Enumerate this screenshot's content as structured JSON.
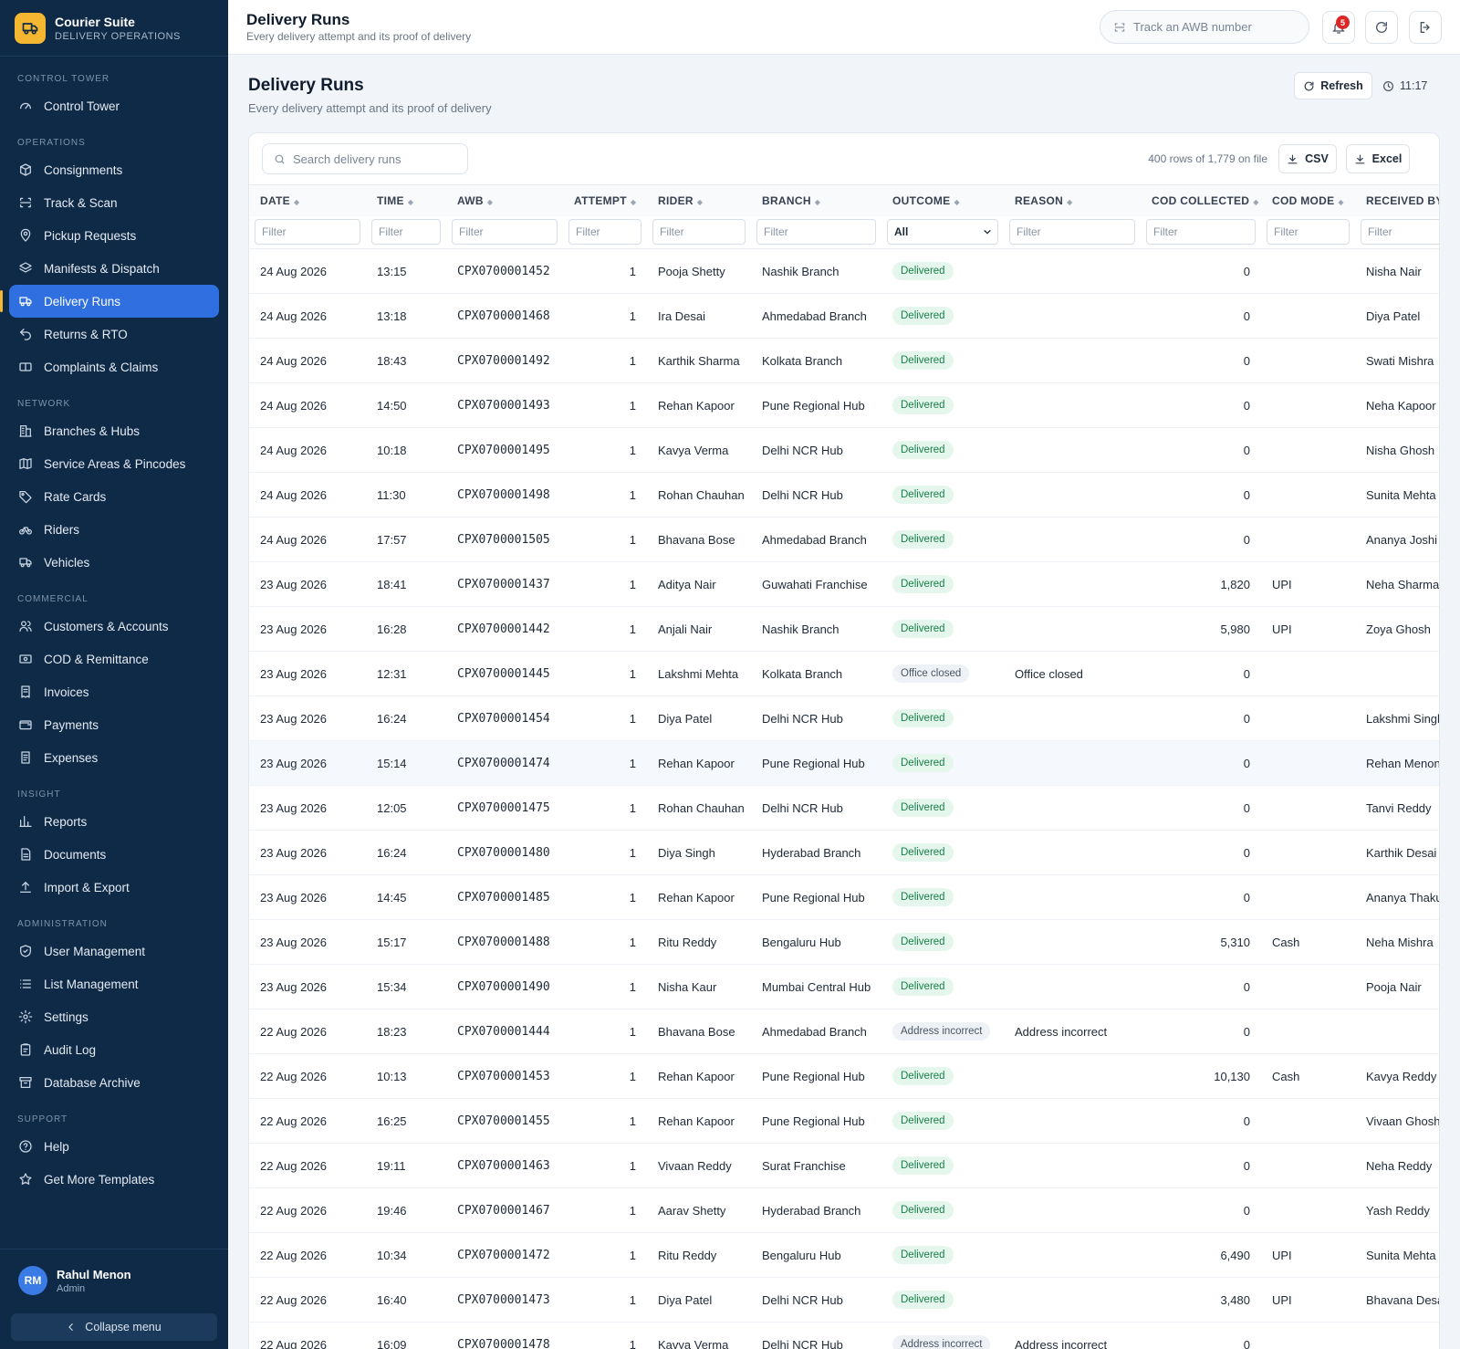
{
  "app": {
    "name": "Courier Suite",
    "subtitle": "DELIVERY OPERATIONS"
  },
  "nav": [
    {
      "section": "CONTROL TOWER",
      "items": [
        {
          "label": "Control Tower",
          "icon": "gauge-icon"
        }
      ]
    },
    {
      "section": "OPERATIONS",
      "items": [
        {
          "label": "Consignments",
          "icon": "box-icon"
        },
        {
          "label": "Track & Scan",
          "icon": "scan-icon"
        },
        {
          "label": "Pickup Requests",
          "icon": "map-pin-icon"
        },
        {
          "label": "Manifests & Dispatch",
          "icon": "layers-icon"
        },
        {
          "label": "Delivery Runs",
          "icon": "truck-icon",
          "active": true
        },
        {
          "label": "Returns & RTO",
          "icon": "undo-icon"
        },
        {
          "label": "Complaints & Claims",
          "icon": "ticket-icon"
        }
      ]
    },
    {
      "section": "NETWORK",
      "items": [
        {
          "label": "Branches & Hubs",
          "icon": "building-icon"
        },
        {
          "label": "Service Areas & Pincodes",
          "icon": "map-icon"
        },
        {
          "label": "Rate Cards",
          "icon": "tag-icon"
        },
        {
          "label": "Riders",
          "icon": "bike-icon"
        },
        {
          "label": "Vehicles",
          "icon": "truck-icon"
        }
      ]
    },
    {
      "section": "COMMERCIAL",
      "items": [
        {
          "label": "Customers & Accounts",
          "icon": "users-icon"
        },
        {
          "label": "COD & Remittance",
          "icon": "cash-icon"
        },
        {
          "label": "Invoices",
          "icon": "invoice-icon"
        },
        {
          "label": "Payments",
          "icon": "wallet-icon"
        },
        {
          "label": "Expenses",
          "icon": "receipt-icon"
        }
      ]
    },
    {
      "section": "INSIGHT",
      "items": [
        {
          "label": "Reports",
          "icon": "bar-chart-icon"
        },
        {
          "label": "Documents",
          "icon": "document-icon"
        },
        {
          "label": "Import & Export",
          "icon": "upload-icon"
        }
      ]
    },
    {
      "section": "ADMINISTRATION",
      "items": [
        {
          "label": "User Management",
          "icon": "shield-icon"
        },
        {
          "label": "List Management",
          "icon": "list-icon"
        },
        {
          "label": "Settings",
          "icon": "gear-icon"
        },
        {
          "label": "Audit Log",
          "icon": "clipboard-icon"
        },
        {
          "label": "Database Archive",
          "icon": "archive-icon"
        }
      ]
    },
    {
      "section": "SUPPORT",
      "items": [
        {
          "label": "Help",
          "icon": "help-icon"
        },
        {
          "label": "Get More Templates",
          "icon": "star-icon"
        }
      ]
    }
  ],
  "user": {
    "initials": "RM",
    "name": "Rahul Menon",
    "role": "Admin"
  },
  "collapse_label": "Collapse menu",
  "topbar": {
    "title": "Delivery Runs",
    "subtitle": "Every delivery attempt and its proof of delivery",
    "track_placeholder": "Track an AWB number",
    "notification_count": "5"
  },
  "page": {
    "title": "Delivery Runs",
    "subtitle": "Every delivery attempt and its proof of delivery",
    "refresh_label": "Refresh",
    "time": "11:17"
  },
  "table": {
    "search_placeholder": "Search delivery runs",
    "row_count": "400 rows of 1,779 on file",
    "csv_label": "CSV",
    "excel_label": "Excel",
    "filter_placeholder": "Filter",
    "outcome_filter": "All",
    "columns": [
      "DATE",
      "TIME",
      "AWB",
      "ATTEMPT",
      "RIDER",
      "BRANCH",
      "OUTCOME",
      "REASON",
      "COD COLLECTED",
      "COD MODE",
      "RECEIVED BY"
    ],
    "rows": [
      [
        "24 Aug 2026",
        "13:15",
        "CPX0700001452",
        "1",
        "Pooja Shetty",
        "Nashik Branch",
        "Delivered",
        "",
        "0",
        "",
        "Nisha Nair"
      ],
      [
        "24 Aug 2026",
        "13:18",
        "CPX0700001468",
        "1",
        "Ira Desai",
        "Ahmedabad Branch",
        "Delivered",
        "",
        "0",
        "",
        "Diya Patel"
      ],
      [
        "24 Aug 2026",
        "18:43",
        "CPX0700001492",
        "1",
        "Karthik Sharma",
        "Kolkata Branch",
        "Delivered",
        "",
        "0",
        "",
        "Swati Mishra"
      ],
      [
        "24 Aug 2026",
        "14:50",
        "CPX0700001493",
        "1",
        "Rehan Kapoor",
        "Pune Regional Hub",
        "Delivered",
        "",
        "0",
        "",
        "Neha Kapoor"
      ],
      [
        "24 Aug 2026",
        "10:18",
        "CPX0700001495",
        "1",
        "Kavya Verma",
        "Delhi NCR Hub",
        "Delivered",
        "",
        "0",
        "",
        "Nisha Ghosh"
      ],
      [
        "24 Aug 2026",
        "11:30",
        "CPX0700001498",
        "1",
        "Rohan Chauhan",
        "Delhi NCR Hub",
        "Delivered",
        "",
        "0",
        "",
        "Sunita Mehta"
      ],
      [
        "24 Aug 2026",
        "17:57",
        "CPX0700001505",
        "1",
        "Bhavana Bose",
        "Ahmedabad Branch",
        "Delivered",
        "",
        "0",
        "",
        "Ananya Joshi"
      ],
      [
        "23 Aug 2026",
        "18:41",
        "CPX0700001437",
        "1",
        "Aditya Nair",
        "Guwahati Franchise",
        "Delivered",
        "",
        "1,820",
        "UPI",
        "Neha Sharma"
      ],
      [
        "23 Aug 2026",
        "16:28",
        "CPX0700001442",
        "1",
        "Anjali Nair",
        "Nashik Branch",
        "Delivered",
        "",
        "5,980",
        "UPI",
        "Zoya Ghosh"
      ],
      [
        "23 Aug 2026",
        "12:31",
        "CPX0700001445",
        "1",
        "Lakshmi Mehta",
        "Kolkata Branch",
        "Office closed",
        "Office closed",
        "0",
        "",
        ""
      ],
      [
        "23 Aug 2026",
        "16:24",
        "CPX0700001454",
        "1",
        "Diya Patel",
        "Delhi NCR Hub",
        "Delivered",
        "",
        "0",
        "",
        "Lakshmi Singh"
      ],
      [
        "23 Aug 2026",
        "15:14",
        "CPX0700001474",
        "1",
        "Rehan Kapoor",
        "Pune Regional Hub",
        "Delivered",
        "",
        "0",
        "",
        "Rehan Menon"
      ],
      [
        "23 Aug 2026",
        "12:05",
        "CPX0700001475",
        "1",
        "Rohan Chauhan",
        "Delhi NCR Hub",
        "Delivered",
        "",
        "0",
        "",
        "Tanvi Reddy"
      ],
      [
        "23 Aug 2026",
        "16:24",
        "CPX0700001480",
        "1",
        "Diya Singh",
        "Hyderabad Branch",
        "Delivered",
        "",
        "0",
        "",
        "Karthik Desai"
      ],
      [
        "23 Aug 2026",
        "14:45",
        "CPX0700001485",
        "1",
        "Rehan Kapoor",
        "Pune Regional Hub",
        "Delivered",
        "",
        "0",
        "",
        "Ananya Thakur"
      ],
      [
        "23 Aug 2026",
        "15:17",
        "CPX0700001488",
        "1",
        "Ritu Reddy",
        "Bengaluru Hub",
        "Delivered",
        "",
        "5,310",
        "Cash",
        "Neha Mishra"
      ],
      [
        "23 Aug 2026",
        "15:34",
        "CPX0700001490",
        "1",
        "Nisha Kaur",
        "Mumbai Central Hub",
        "Delivered",
        "",
        "0",
        "",
        "Pooja Nair"
      ],
      [
        "22 Aug 2026",
        "18:23",
        "CPX0700001444",
        "1",
        "Bhavana Bose",
        "Ahmedabad Branch",
        "Address incorrect",
        "Address incorrect",
        "0",
        "",
        ""
      ],
      [
        "22 Aug 2026",
        "10:13",
        "CPX0700001453",
        "1",
        "Rehan Kapoor",
        "Pune Regional Hub",
        "Delivered",
        "",
        "10,130",
        "Cash",
        "Kavya Reddy"
      ],
      [
        "22 Aug 2026",
        "16:25",
        "CPX0700001455",
        "1",
        "Rehan Kapoor",
        "Pune Regional Hub",
        "Delivered",
        "",
        "0",
        "",
        "Vivaan Ghosh"
      ],
      [
        "22 Aug 2026",
        "19:11",
        "CPX0700001463",
        "1",
        "Vivaan Reddy",
        "Surat Franchise",
        "Delivered",
        "",
        "0",
        "",
        "Neha Reddy"
      ],
      [
        "22 Aug 2026",
        "19:46",
        "CPX0700001467",
        "1",
        "Aarav Shetty",
        "Hyderabad Branch",
        "Delivered",
        "",
        "0",
        "",
        "Yash Reddy"
      ],
      [
        "22 Aug 2026",
        "10:34",
        "CPX0700001472",
        "1",
        "Ritu Reddy",
        "Bengaluru Hub",
        "Delivered",
        "",
        "6,490",
        "UPI",
        "Sunita Mehta"
      ],
      [
        "22 Aug 2026",
        "16:40",
        "CPX0700001473",
        "1",
        "Diya Patel",
        "Delhi NCR Hub",
        "Delivered",
        "",
        "3,480",
        "UPI",
        "Bhavana Desai"
      ],
      [
        "22 Aug 2026",
        "16:09",
        "CPX0700001478",
        "1",
        "Kavya Verma",
        "Delhi NCR Hub",
        "Address incorrect",
        "Address incorrect",
        "0",
        "",
        ""
      ]
    ]
  }
}
